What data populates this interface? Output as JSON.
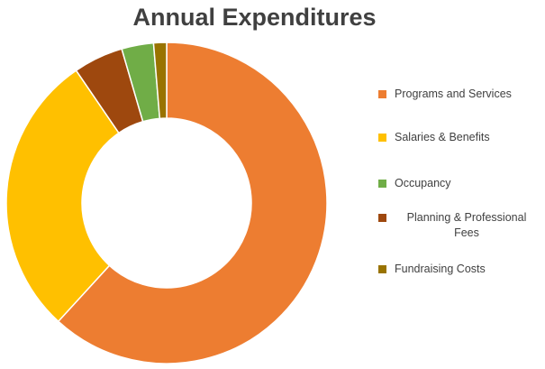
{
  "chart_data": {
    "type": "pie",
    "donut": true,
    "title": "Annual Expenditures",
    "categories": [
      "Programs and Services",
      "Salaries & Benefits",
      "Occupancy",
      "Planning & Professional Fees",
      "Fundraising Costs"
    ],
    "values": [
      61.5,
      28.5,
      3.2,
      5.0,
      1.3
    ],
    "colors": [
      "#ED7D31",
      "#FFC000",
      "#70AD47",
      "#9E480E",
      "#997300"
    ],
    "legend_position": "right",
    "legend": [
      {
        "label": "Programs and Services",
        "color": "#ED7D31"
      },
      {
        "label": "Salaries & Benefits",
        "color": "#FFC000"
      },
      {
        "label": "Occupancy",
        "color": "#70AD47"
      },
      {
        "label": "Planning & Professional Fees",
        "color": "#9E480E"
      },
      {
        "label": "Fundraising Costs",
        "color": "#997300"
      }
    ]
  }
}
